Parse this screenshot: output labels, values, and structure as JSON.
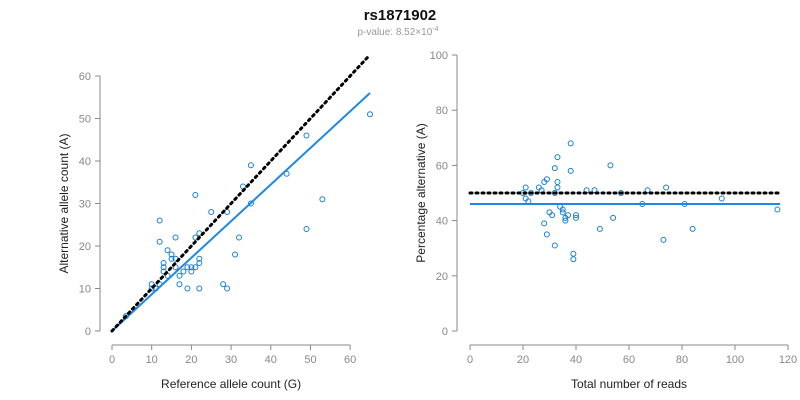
{
  "title": "rs1871902",
  "subtitle": {
    "prefix": "p-value: 8.52×10",
    "exponent": "-4"
  },
  "chart_data": [
    {
      "type": "scatter",
      "xlabel": "Reference allele count (G)",
      "ylabel": "Alternative allele count (A)",
      "xlim": [
        0,
        65
      ],
      "ylim": [
        0,
        60
      ],
      "xticks": [
        0,
        10,
        20,
        30,
        40,
        50,
        60
      ],
      "yticks": [
        0,
        10,
        20,
        30,
        40,
        50,
        60
      ],
      "grid": false,
      "series": [
        {
          "kind": "points",
          "color": "#1a7fd0",
          "points": [
            [
              3.5,
              3.5
            ],
            [
              10,
              10
            ],
            [
              10,
              11
            ],
            [
              11,
              10
            ],
            [
              12,
              11
            ],
            [
              12,
              21
            ],
            [
              12,
              26
            ],
            [
              13,
              14
            ],
            [
              13,
              15
            ],
            [
              13,
              16
            ],
            [
              14,
              13
            ],
            [
              14,
              19
            ],
            [
              15,
              17
            ],
            [
              15,
              18
            ],
            [
              16,
              15
            ],
            [
              16,
              17
            ],
            [
              16,
              22
            ],
            [
              17,
              11
            ],
            [
              17,
              13
            ],
            [
              18,
              14
            ],
            [
              19,
              10
            ],
            [
              19,
              15
            ],
            [
              20,
              14
            ],
            [
              20,
              15
            ],
            [
              21,
              15
            ],
            [
              21,
              22
            ],
            [
              21,
              32
            ],
            [
              22,
              10
            ],
            [
              22,
              16
            ],
            [
              22,
              17
            ],
            [
              22,
              23
            ],
            [
              25,
              28
            ],
            [
              28,
              11
            ],
            [
              29,
              10
            ],
            [
              29,
              28
            ],
            [
              31,
              18
            ],
            [
              32,
              22
            ],
            [
              33,
              34
            ],
            [
              35,
              30
            ],
            [
              35,
              39
            ],
            [
              44,
              37
            ],
            [
              49,
              24
            ],
            [
              49,
              46
            ],
            [
              53,
              31
            ],
            [
              65,
              51
            ]
          ]
        },
        {
          "kind": "line",
          "style": "solid",
          "color": "#1e88e5",
          "x": [
            0,
            65
          ],
          "y": [
            0,
            56
          ]
        },
        {
          "kind": "line",
          "style": "dotted",
          "color": "#000000",
          "x": [
            0,
            65
          ],
          "y": [
            0,
            65
          ]
        }
      ]
    },
    {
      "type": "scatter",
      "xlabel": "Total number of reads",
      "ylabel": "Percentage alternative (A)",
      "xlim": [
        0,
        120
      ],
      "ylim": [
        0,
        100
      ],
      "xticks": [
        0,
        20,
        40,
        60,
        80,
        100,
        120
      ],
      "yticks": [
        0,
        20,
        40,
        60,
        80,
        100
      ],
      "grid": false,
      "series": [
        {
          "kind": "points",
          "color": "#1a7fd0",
          "points": [
            [
              20,
              50
            ],
            [
              21,
              52
            ],
            [
              21,
              48
            ],
            [
              22,
              47
            ],
            [
              23,
              50
            ],
            [
              26,
              52
            ],
            [
              27,
              51
            ],
            [
              28,
              54
            ],
            [
              28,
              39
            ],
            [
              29,
              35
            ],
            [
              29,
              55
            ],
            [
              30,
              43
            ],
            [
              31,
              42
            ],
            [
              32,
              50
            ],
            [
              32,
              31
            ],
            [
              32,
              59
            ],
            [
              33,
              52
            ],
            [
              33,
              54
            ],
            [
              33,
              63
            ],
            [
              34,
              45
            ],
            [
              35,
              43
            ],
            [
              35,
              44
            ],
            [
              36,
              40
            ],
            [
              36,
              41
            ],
            [
              37,
              42
            ],
            [
              38,
              58
            ],
            [
              38,
              68
            ],
            [
              39,
              28
            ],
            [
              39,
              26
            ],
            [
              40,
              41
            ],
            [
              40,
              42
            ],
            [
              44,
              51
            ],
            [
              47,
              51
            ],
            [
              49,
              37
            ],
            [
              53,
              60
            ],
            [
              54,
              41
            ],
            [
              57,
              50
            ],
            [
              65,
              46
            ],
            [
              67,
              51
            ],
            [
              73,
              33
            ],
            [
              74,
              52
            ],
            [
              81,
              46
            ],
            [
              84,
              37
            ],
            [
              95,
              48
            ],
            [
              116,
              44
            ]
          ]
        },
        {
          "kind": "line",
          "style": "solid",
          "color": "#1e88e5",
          "x": [
            0,
            117
          ],
          "y": [
            46,
            46
          ]
        },
        {
          "kind": "line",
          "style": "dotted",
          "color": "#000000",
          "x": [
            0,
            117
          ],
          "y": [
            50,
            50
          ]
        }
      ]
    }
  ]
}
